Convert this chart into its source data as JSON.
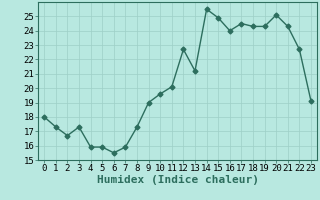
{
  "x": [
    0,
    1,
    2,
    3,
    4,
    5,
    6,
    7,
    8,
    9,
    10,
    11,
    12,
    13,
    14,
    15,
    16,
    17,
    18,
    19,
    20,
    21,
    22,
    23
  ],
  "y": [
    18.0,
    17.3,
    16.7,
    17.3,
    15.9,
    15.9,
    15.5,
    15.9,
    17.3,
    19.0,
    19.6,
    20.1,
    22.7,
    21.2,
    25.5,
    24.9,
    24.0,
    24.5,
    24.3,
    24.3,
    25.1,
    24.3,
    22.7,
    19.1
  ],
  "xlabel": "Humidex (Indice chaleur)",
  "ylim": [
    15,
    26
  ],
  "xlim": [
    -0.5,
    23.5
  ],
  "yticks": [
    15,
    16,
    17,
    18,
    19,
    20,
    21,
    22,
    23,
    24,
    25
  ],
  "xticks": [
    0,
    1,
    2,
    3,
    4,
    5,
    6,
    7,
    8,
    9,
    10,
    11,
    12,
    13,
    14,
    15,
    16,
    17,
    18,
    19,
    20,
    21,
    22,
    23
  ],
  "line_color": "#2d6e5e",
  "bg_color": "#b8e8e0",
  "grid_color": "#9ecfc7",
  "marker": "D",
  "marker_size": 2.5,
  "line_width": 1.0,
  "xlabel_fontsize": 8,
  "tick_fontsize": 6.5
}
